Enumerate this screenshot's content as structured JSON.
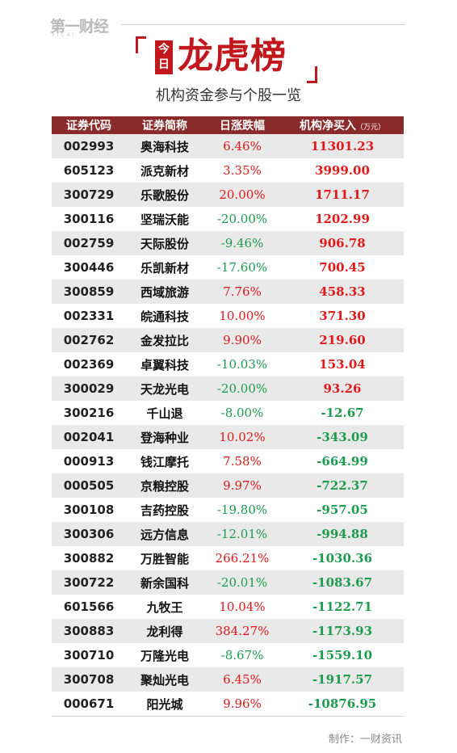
{
  "header": {
    "logo": "第一财经",
    "logo_sub": "YICAI",
    "badge": "今日",
    "title": "龙虎榜",
    "subtitle": "机构资金参与个股一览"
  },
  "table": {
    "columns": [
      "证券代码",
      "证券简称",
      "日涨跌幅",
      "机构净买入"
    ],
    "unit": "（万元）",
    "rows": [
      {
        "code": "002993",
        "name": "奥海科技",
        "change": "6.46%",
        "net": "11301.23"
      },
      {
        "code": "605123",
        "name": "派克新材",
        "change": "3.35%",
        "net": "3999.00"
      },
      {
        "code": "300729",
        "name": "乐歌股份",
        "change": "20.00%",
        "net": "1711.17"
      },
      {
        "code": "300116",
        "name": "坚瑞沃能",
        "change": "-20.00%",
        "net": "1202.99"
      },
      {
        "code": "002759",
        "name": "天际股份",
        "change": "-9.46%",
        "net": "906.78"
      },
      {
        "code": "300446",
        "name": "乐凯新材",
        "change": "-17.60%",
        "net": "700.45"
      },
      {
        "code": "300859",
        "name": "西域旅游",
        "change": "7.76%",
        "net": "458.33"
      },
      {
        "code": "002331",
        "name": "皖通科技",
        "change": "10.00%",
        "net": "371.30"
      },
      {
        "code": "002762",
        "name": "金发拉比",
        "change": "9.90%",
        "net": "219.60"
      },
      {
        "code": "002369",
        "name": "卓翼科技",
        "change": "-10.03%",
        "net": "153.04"
      },
      {
        "code": "300029",
        "name": "天龙光电",
        "change": "-20.00%",
        "net": "93.26"
      },
      {
        "code": "300216",
        "name": "千山退",
        "change": "-8.00%",
        "net": "-12.67"
      },
      {
        "code": "002041",
        "name": "登海种业",
        "change": "10.02%",
        "net": "-343.09"
      },
      {
        "code": "000913",
        "name": "钱江摩托",
        "change": "7.58%",
        "net": "-664.99"
      },
      {
        "code": "000505",
        "name": "京粮控股",
        "change": "9.97%",
        "net": "-722.37"
      },
      {
        "code": "300108",
        "name": "吉药控股",
        "change": "-19.80%",
        "net": "-957.05"
      },
      {
        "code": "300306",
        "name": "远方信息",
        "change": "-12.01%",
        "net": "-994.88"
      },
      {
        "code": "300882",
        "name": "万胜智能",
        "change": "266.21%",
        "net": "-1030.36"
      },
      {
        "code": "300722",
        "name": "新余国科",
        "change": "-20.01%",
        "net": "-1083.67"
      },
      {
        "code": "601566",
        "name": "九牧王",
        "change": "10.04%",
        "net": "-1122.71"
      },
      {
        "code": "300883",
        "name": "龙利得",
        "change": "384.27%",
        "net": "-1173.93"
      },
      {
        "code": "300710",
        "name": "万隆光电",
        "change": "-8.67%",
        "net": "-1559.10"
      },
      {
        "code": "300708",
        "name": "聚灿光电",
        "change": "6.45%",
        "net": "-1917.57"
      },
      {
        "code": "000671",
        "name": "阳光城",
        "change": "9.96%",
        "net": "-10876.95"
      }
    ]
  },
  "footer": {
    "credit": "制作：一财资讯"
  },
  "colors": {
    "accent": "#c0181c",
    "header_bg": "#8b2a2a",
    "up": "#e0191b",
    "down": "#1d9b4e"
  }
}
